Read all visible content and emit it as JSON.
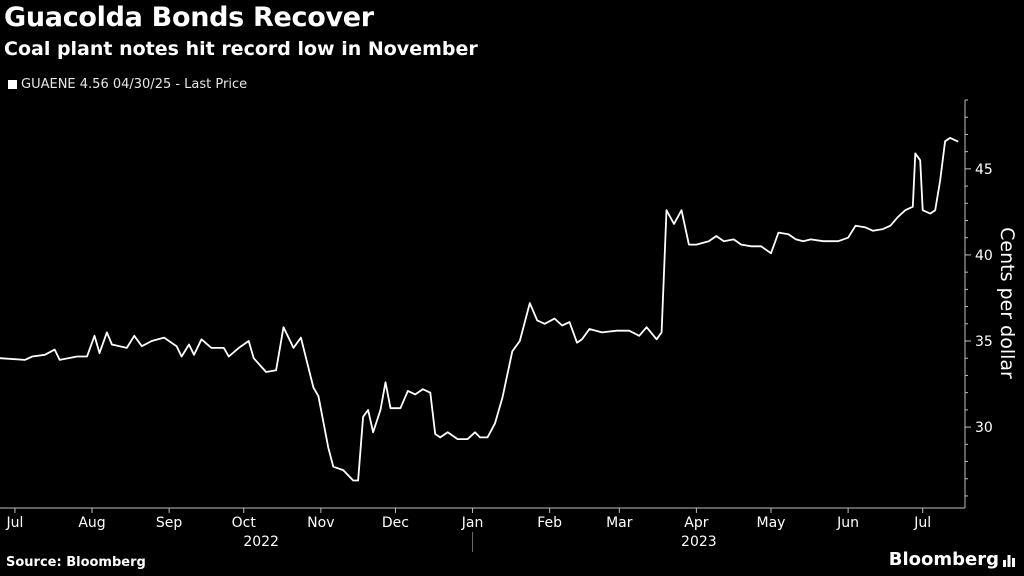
{
  "header": {
    "title": "Guacolda Bonds Recover",
    "subtitle": "Coal plant notes hit record low in November"
  },
  "legend": {
    "label": "GUAENE 4.56 04/30/25 - Last Price"
  },
  "footer": {
    "source": "Source: Bloomberg",
    "brand": "Bloomberg"
  },
  "colors": {
    "background": "#000000",
    "line": "#ffffff",
    "axis": "#bfbfbf"
  },
  "chart_data": {
    "type": "line",
    "ylabel": "Cents per dollar",
    "ylim": [
      25.3,
      49.0
    ],
    "yticks": [
      30,
      35,
      40,
      45
    ],
    "grid": false,
    "x_range": [
      "2022-06-25",
      "2023-07-18"
    ],
    "month_ticks": [
      {
        "label": "Jul",
        "date": "2022-07-01"
      },
      {
        "label": "Aug",
        "date": "2022-08-01"
      },
      {
        "label": "Sep",
        "date": "2022-09-01"
      },
      {
        "label": "Oct",
        "date": "2022-10-01"
      },
      {
        "label": "Nov",
        "date": "2022-11-01"
      },
      {
        "label": "Dec",
        "date": "2022-12-01"
      },
      {
        "label": "Jan",
        "date": "2023-01-01"
      },
      {
        "label": "Feb",
        "date": "2023-02-01"
      },
      {
        "label": "Mar",
        "date": "2023-03-01"
      },
      {
        "label": "Apr",
        "date": "2023-04-01"
      },
      {
        "label": "May",
        "date": "2023-05-01"
      },
      {
        "label": "Jun",
        "date": "2023-06-01"
      },
      {
        "label": "Jul",
        "date": "2023-07-01"
      }
    ],
    "year_labels": [
      {
        "label": "2022",
        "date": "2022-10-08"
      },
      {
        "label": "2023",
        "date": "2023-04-02"
      }
    ],
    "year_separator": "2023-01-01",
    "series": [
      {
        "name": "GUAENE 4.56 04/30/25 - Last Price",
        "points": [
          [
            "2022-06-25",
            34.0
          ],
          [
            "2022-07-05",
            33.9
          ],
          [
            "2022-07-08",
            34.1
          ],
          [
            "2022-07-13",
            34.2
          ],
          [
            "2022-07-17",
            34.5
          ],
          [
            "2022-07-19",
            33.9
          ],
          [
            "2022-07-26",
            34.1
          ],
          [
            "2022-07-30",
            34.1
          ],
          [
            "2022-08-02",
            35.3
          ],
          [
            "2022-08-04",
            34.3
          ],
          [
            "2022-08-07",
            35.5
          ],
          [
            "2022-08-09",
            34.8
          ],
          [
            "2022-08-15",
            34.6
          ],
          [
            "2022-08-18",
            35.3
          ],
          [
            "2022-08-21",
            34.7
          ],
          [
            "2022-08-25",
            35.0
          ],
          [
            "2022-08-30",
            35.2
          ],
          [
            "2022-09-04",
            34.7
          ],
          [
            "2022-09-06",
            34.1
          ],
          [
            "2022-09-09",
            34.8
          ],
          [
            "2022-09-11",
            34.2
          ],
          [
            "2022-09-14",
            35.1
          ],
          [
            "2022-09-18",
            34.6
          ],
          [
            "2022-09-23",
            34.6
          ],
          [
            "2022-09-25",
            34.1
          ],
          [
            "2022-09-29",
            34.6
          ],
          [
            "2022-10-03",
            35.0
          ],
          [
            "2022-10-05",
            34.0
          ],
          [
            "2022-10-10",
            33.2
          ],
          [
            "2022-10-14",
            33.3
          ],
          [
            "2022-10-17",
            35.8
          ],
          [
            "2022-10-21",
            34.6
          ],
          [
            "2022-10-24",
            35.2
          ],
          [
            "2022-10-29",
            32.3
          ],
          [
            "2022-10-31",
            31.8
          ],
          [
            "2022-11-04",
            28.8
          ],
          [
            "2022-11-06",
            27.7
          ],
          [
            "2022-11-10",
            27.5
          ],
          [
            "2022-11-14",
            26.9
          ],
          [
            "2022-11-16",
            26.9
          ],
          [
            "2022-11-18",
            30.6
          ],
          [
            "2022-11-20",
            31.0
          ],
          [
            "2022-11-22",
            29.7
          ],
          [
            "2022-11-25",
            31.0
          ],
          [
            "2022-11-27",
            32.6
          ],
          [
            "2022-11-29",
            31.1
          ],
          [
            "2022-12-03",
            31.1
          ],
          [
            "2022-12-06",
            32.1
          ],
          [
            "2022-12-09",
            31.9
          ],
          [
            "2022-12-12",
            32.2
          ],
          [
            "2022-12-15",
            32.0
          ],
          [
            "2022-12-17",
            29.6
          ],
          [
            "2022-12-19",
            29.4
          ],
          [
            "2022-12-22",
            29.7
          ],
          [
            "2022-12-26",
            29.3
          ],
          [
            "2022-12-30",
            29.3
          ],
          [
            "2023-01-02",
            29.7
          ],
          [
            "2023-01-04",
            29.4
          ],
          [
            "2023-01-07",
            29.4
          ],
          [
            "2023-01-10",
            30.2
          ],
          [
            "2023-01-13",
            31.7
          ],
          [
            "2023-01-17",
            34.4
          ],
          [
            "2023-01-20",
            35.0
          ],
          [
            "2023-01-24",
            37.2
          ],
          [
            "2023-01-27",
            36.2
          ],
          [
            "2023-01-30",
            36.0
          ],
          [
            "2023-02-03",
            36.3
          ],
          [
            "2023-02-06",
            35.9
          ],
          [
            "2023-02-09",
            36.1
          ],
          [
            "2023-02-12",
            34.9
          ],
          [
            "2023-02-14",
            35.1
          ],
          [
            "2023-02-17",
            35.7
          ],
          [
            "2023-02-22",
            35.5
          ],
          [
            "2023-02-28",
            35.6
          ],
          [
            "2023-03-05",
            35.6
          ],
          [
            "2023-03-09",
            35.3
          ],
          [
            "2023-03-12",
            35.8
          ],
          [
            "2023-03-16",
            35.1
          ],
          [
            "2023-03-18",
            35.5
          ],
          [
            "2023-03-20",
            42.6
          ],
          [
            "2023-03-23",
            41.8
          ],
          [
            "2023-03-26",
            42.6
          ],
          [
            "2023-03-29",
            40.6
          ],
          [
            "2023-04-01",
            40.6
          ],
          [
            "2023-04-06",
            40.8
          ],
          [
            "2023-04-09",
            41.1
          ],
          [
            "2023-04-12",
            40.8
          ],
          [
            "2023-04-16",
            40.9
          ],
          [
            "2023-04-19",
            40.6
          ],
          [
            "2023-04-23",
            40.5
          ],
          [
            "2023-04-27",
            40.5
          ],
          [
            "2023-05-01",
            40.1
          ],
          [
            "2023-05-04",
            41.3
          ],
          [
            "2023-05-08",
            41.2
          ],
          [
            "2023-05-11",
            40.9
          ],
          [
            "2023-05-14",
            40.8
          ],
          [
            "2023-05-17",
            40.9
          ],
          [
            "2023-05-22",
            40.8
          ],
          [
            "2023-05-28",
            40.8
          ],
          [
            "2023-06-01",
            41.0
          ],
          [
            "2023-06-04",
            41.7
          ],
          [
            "2023-06-08",
            41.6
          ],
          [
            "2023-06-11",
            41.4
          ],
          [
            "2023-06-15",
            41.5
          ],
          [
            "2023-06-18",
            41.7
          ],
          [
            "2023-06-21",
            42.2
          ],
          [
            "2023-06-24",
            42.6
          ],
          [
            "2023-06-27",
            42.8
          ],
          [
            "2023-06-28",
            45.9
          ],
          [
            "2023-06-30",
            45.5
          ],
          [
            "2023-07-01",
            42.6
          ],
          [
            "2023-07-04",
            42.4
          ],
          [
            "2023-07-06",
            42.6
          ],
          [
            "2023-07-08",
            44.3
          ],
          [
            "2023-07-10",
            46.6
          ],
          [
            "2023-07-12",
            46.8
          ],
          [
            "2023-07-15",
            46.6
          ]
        ]
      }
    ]
  }
}
